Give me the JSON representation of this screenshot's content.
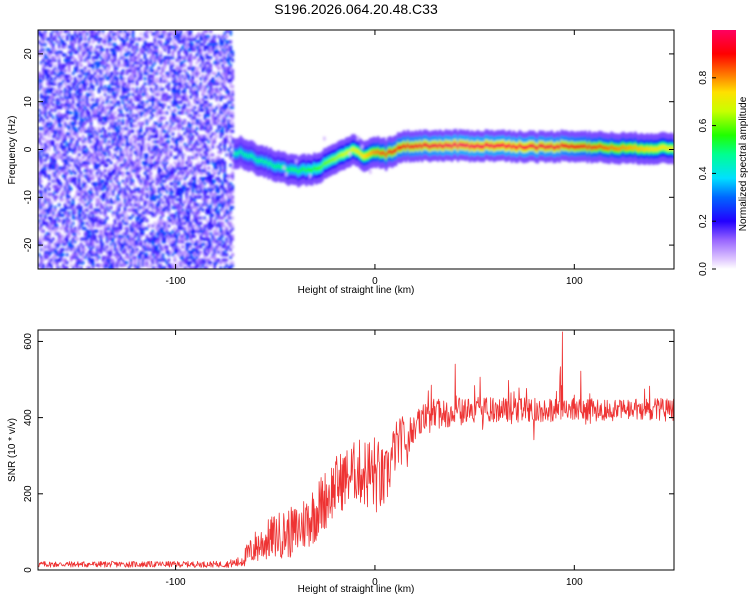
{
  "title": "S196.2026.064.20.48.C33",
  "chart_data": [
    {
      "type": "heatmap",
      "name": "spectrogram",
      "xlabel": "Height of straight line (km)",
      "ylabel": "Frequency (Hz)",
      "xlim": [
        -169,
        150
      ],
      "ylim": [
        -25,
        25
      ],
      "xticks": [
        -100,
        0,
        100
      ],
      "yticks": [
        -20,
        -10,
        0,
        10,
        20
      ],
      "colorbar": {
        "label": "Normalized spectral amplitude",
        "range": [
          0.0,
          1.0
        ],
        "ticks": [
          0.0,
          0.2,
          0.4,
          0.6,
          0.8
        ],
        "tick_labels": [
          "0.0",
          "0.2",
          "0.4",
          "0.6",
          "0.8"
        ]
      },
      "noise_region": {
        "x_range": [
          -169,
          -72
        ],
        "freq_range": [
          -25,
          25
        ],
        "amplitude_range": [
          0.05,
          0.3
        ]
      },
      "signal_ridge": [
        {
          "x": -72,
          "freq": -1
        },
        {
          "x": -68,
          "freq": -0.5
        },
        {
          "x": -60,
          "freq": -2
        },
        {
          "x": -50,
          "freq": -3.5
        },
        {
          "x": -40,
          "freq": -4.5
        },
        {
          "x": -30,
          "freq": -4
        },
        {
          "x": -20,
          "freq": -2
        },
        {
          "x": -12,
          "freq": 0
        },
        {
          "x": -5,
          "freq": -1.5
        },
        {
          "x": 0,
          "freq": -0.5
        },
        {
          "x": 5,
          "freq": -1
        },
        {
          "x": 12,
          "freq": 0.5
        },
        {
          "x": 20,
          "freq": 0.8
        },
        {
          "x": 60,
          "freq": 0.8
        },
        {
          "x": 85,
          "freq": 0.5
        },
        {
          "x": 95,
          "freq": 0.8
        },
        {
          "x": 120,
          "freq": 0.3
        },
        {
          "x": 150,
          "freq": 0.2
        }
      ],
      "ridge_amplitude": [
        {
          "x": -72,
          "amp": 0.45
        },
        {
          "x": -40,
          "amp": 0.5
        },
        {
          "x": -10,
          "amp": 0.7
        },
        {
          "x": 10,
          "amp": 0.9
        },
        {
          "x": 40,
          "amp": 1.0
        },
        {
          "x": 90,
          "amp": 0.95
        },
        {
          "x": 120,
          "amp": 0.8
        },
        {
          "x": 150,
          "amp": 0.7
        }
      ]
    },
    {
      "type": "line",
      "name": "snr",
      "xlabel": "Height of straight line (km)",
      "ylabel": "SNR (10 * v/v)",
      "xlim": [
        -169,
        150
      ],
      "ylim": [
        0,
        630
      ],
      "xticks": [
        -100,
        0,
        100
      ],
      "yticks": [
        0,
        200,
        400,
        600
      ],
      "color": "#ee3333",
      "envelope": [
        {
          "x": -169,
          "mean": 15,
          "noise": 8
        },
        {
          "x": -75,
          "mean": 15,
          "noise": 8
        },
        {
          "x": -68,
          "mean": 20,
          "noise": 15
        },
        {
          "x": -60,
          "mean": 60,
          "noise": 45
        },
        {
          "x": -50,
          "mean": 90,
          "noise": 60
        },
        {
          "x": -40,
          "mean": 100,
          "noise": 70
        },
        {
          "x": -30,
          "mean": 150,
          "noise": 80
        },
        {
          "x": -20,
          "mean": 220,
          "noise": 80
        },
        {
          "x": -10,
          "mean": 260,
          "noise": 80
        },
        {
          "x": 0,
          "mean": 250,
          "noise": 110
        },
        {
          "x": 5,
          "mean": 230,
          "noise": 80
        },
        {
          "x": 10,
          "mean": 320,
          "noise": 70
        },
        {
          "x": 20,
          "mean": 380,
          "noise": 50
        },
        {
          "x": 30,
          "mean": 410,
          "noise": 40
        },
        {
          "x": 50,
          "mean": 420,
          "noise": 35
        },
        {
          "x": 100,
          "mean": 420,
          "noise": 30
        },
        {
          "x": 130,
          "mean": 420,
          "noise": 30
        },
        {
          "x": 150,
          "mean": 420,
          "noise": 30
        }
      ],
      "spike_height": 120,
      "max_value": 625
    }
  ]
}
